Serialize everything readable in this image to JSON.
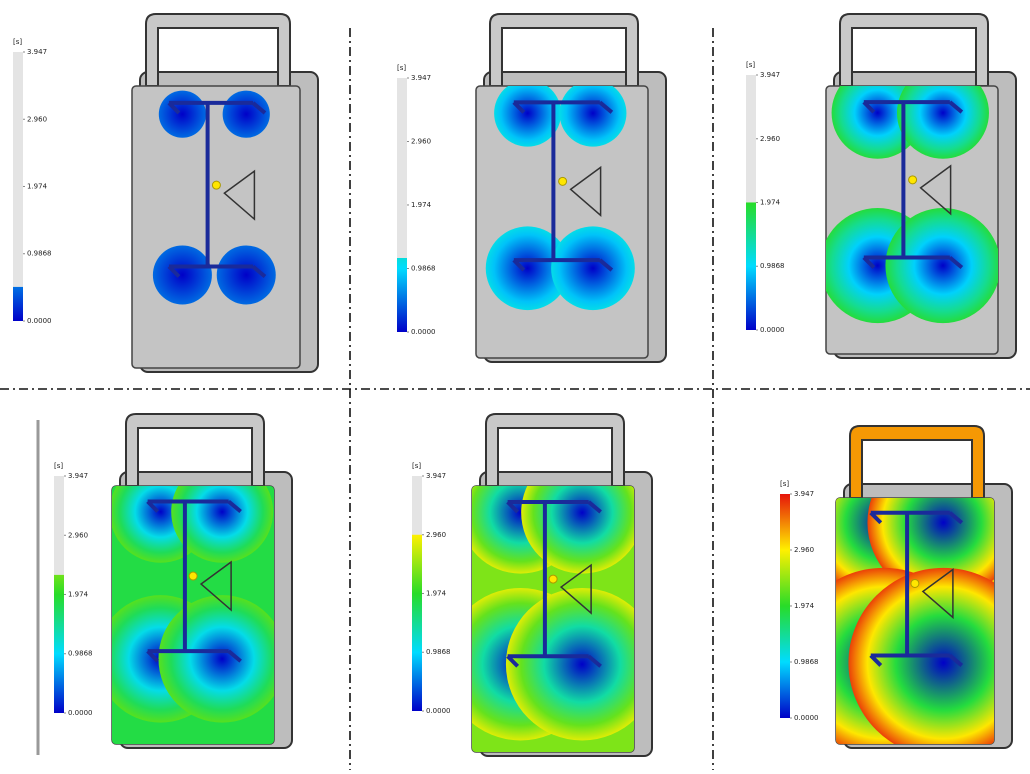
{
  "panels": [
    {
      "legend": {
        "unit": "[s]",
        "ticks": [
          {
            "value": 3.947,
            "label": "3.947"
          },
          {
            "value": 2.96,
            "label": "2.960"
          },
          {
            "value": 1.974,
            "label": "1.974"
          },
          {
            "value": 0.9868,
            "label": "0.9868"
          },
          {
            "value": 0,
            "label": "0.0000"
          }
        ]
      },
      "fill_time": 0.5
    },
    {
      "legend": {
        "unit": "[s]",
        "ticks": [
          {
            "value": 3.947,
            "label": "3.947"
          },
          {
            "value": 2.96,
            "label": "2.960"
          },
          {
            "value": 1.974,
            "label": "1.974"
          },
          {
            "value": 0.9868,
            "label": "0.9868"
          },
          {
            "value": 0,
            "label": "0.0000"
          }
        ]
      },
      "fill_time": 1.15
    },
    {
      "legend": {
        "unit": "[s]",
        "ticks": [
          {
            "value": 3.947,
            "label": "3.947"
          },
          {
            "value": 2.96,
            "label": "2.960"
          },
          {
            "value": 1.974,
            "label": "1.974"
          },
          {
            "value": 0.9868,
            "label": "0.9868"
          },
          {
            "value": 0,
            "label": "0.0000"
          }
        ]
      },
      "fill_time": 1.974
    },
    {
      "legend": {
        "unit": "[s]",
        "ticks": [
          {
            "value": 3.947,
            "label": "3.947"
          },
          {
            "value": 2.96,
            "label": "2.960"
          },
          {
            "value": 1.974,
            "label": "1.974"
          },
          {
            "value": 0.9868,
            "label": "0.9868"
          },
          {
            "value": 0,
            "label": "0.0000"
          }
        ]
      },
      "fill_time": 2.3
    },
    {
      "legend": {
        "unit": "[s]",
        "ticks": [
          {
            "value": 3.947,
            "label": "3.947"
          },
          {
            "value": 2.96,
            "label": "2.960"
          },
          {
            "value": 1.974,
            "label": "1.974"
          },
          {
            "value": 0.9868,
            "label": "0.9868"
          },
          {
            "value": 0,
            "label": "0.0000"
          }
        ]
      },
      "fill_time": 2.96
    },
    {
      "legend": {
        "unit": "[s]",
        "ticks": [
          {
            "value": 3.947,
            "label": "3.947"
          },
          {
            "value": 2.96,
            "label": "2.960"
          },
          {
            "value": 1.974,
            "label": "1.974"
          },
          {
            "value": 0.9868,
            "label": "0.9868"
          },
          {
            "value": 0,
            "label": "0.0000"
          }
        ]
      },
      "fill_time": 3.947
    }
  ]
}
